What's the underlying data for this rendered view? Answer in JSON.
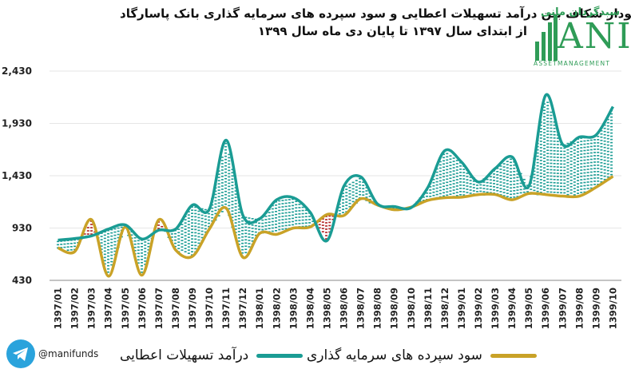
{
  "header": {
    "title_line1": "نمودار شکاف بین درآمد تسهیلات اعطایی و سود سپرده های سرمایه گذاری بانک پاسارگاد",
    "title_line2": "از ابتدای سال ۱۳۹۷ تا پایان دی ماه سال ۱۳۹۹"
  },
  "logo": {
    "persian": "سبدگردان مانی",
    "letters": "ANI",
    "subtitle": "ASSETMANAGEMENT"
  },
  "footer": {
    "handle": "@manifunds"
  },
  "colors": {
    "facilities": "#1a9c94",
    "deposits": "#c9a227",
    "gap_positive": "#1a9c94",
    "gap_negative": "#b22222",
    "axis": "#888888"
  },
  "chart_data": {
    "type": "line",
    "categories": [
      "1397/01",
      "1397/02",
      "1397/03",
      "1397/04",
      "1397/05",
      "1397/06",
      "1397/07",
      "1397/08",
      "1397/09",
      "1397/10",
      "1397/11",
      "1397/12",
      "1398/01",
      "1398/02",
      "1398/03",
      "1398/04",
      "1398/05",
      "1398/06",
      "1398/07",
      "1398/08",
      "1398/09",
      "1398/10",
      "1398/11",
      "1398/12",
      "1399/01",
      "1399/02",
      "1399/03",
      "1399/04",
      "1399/05",
      "1399/06",
      "1399/07",
      "1399/08",
      "1399/09",
      "1399/10"
    ],
    "series": [
      {
        "name": "درآمد تسهیلات اعطایی",
        "color_key": "facilities",
        "values": [
          815,
          830,
          855,
          920,
          960,
          825,
          910,
          920,
          1150,
          1110,
          1770,
          1050,
          1020,
          1200,
          1220,
          1080,
          810,
          1330,
          1420,
          1160,
          1135,
          1125,
          1320,
          1670,
          1560,
          1370,
          1500,
          1610,
          1330,
          2200,
          1730,
          1800,
          1820,
          2090
        ]
      },
      {
        "name": "سود سپرده های سرمایه گذاری",
        "color_key": "deposits",
        "values": [
          740,
          705,
          1010,
          470,
          940,
          480,
          1010,
          720,
          660,
          920,
          1120,
          650,
          880,
          870,
          930,
          940,
          1060,
          1050,
          1210,
          1150,
          1105,
          1130,
          1195,
          1220,
          1225,
          1250,
          1250,
          1200,
          1260,
          1250,
          1235,
          1235,
          1320,
          1425
        ]
      }
    ],
    "y_axis": {
      "ticks": [
        "2,430",
        "1,930",
        "1,430",
        "930",
        "430"
      ],
      "ylim": [
        430,
        2430
      ]
    },
    "x_axis": {
      "rotated_labels": true
    },
    "gap_fill": "hatched vertical fill between the two series; red where deposits exceed facilities",
    "legend": {
      "placement": "bottom"
    }
  }
}
